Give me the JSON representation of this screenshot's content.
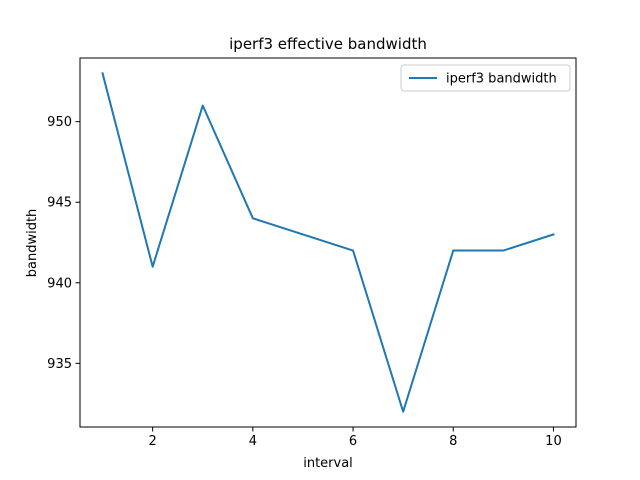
{
  "chart_data": {
    "type": "line",
    "title": "iperf3 effective bandwidth",
    "xlabel": "interval",
    "ylabel": "bandwidth",
    "x": [
      1,
      2,
      3,
      4,
      5,
      6,
      7,
      8,
      9,
      10
    ],
    "series": [
      {
        "name": "iperf3 bandwidth",
        "values": [
          953,
          941,
          951,
          944,
          943,
          942,
          932,
          942,
          942,
          943
        ],
        "color": "#1f77b4"
      }
    ],
    "xlim": [
      0.55,
      10.45
    ],
    "ylim": [
      931.05,
      953.95
    ],
    "xticks": [
      2,
      4,
      6,
      8,
      10
    ],
    "yticks": [
      935,
      940,
      945,
      950
    ],
    "grid": false,
    "legend_position": "top-right"
  }
}
